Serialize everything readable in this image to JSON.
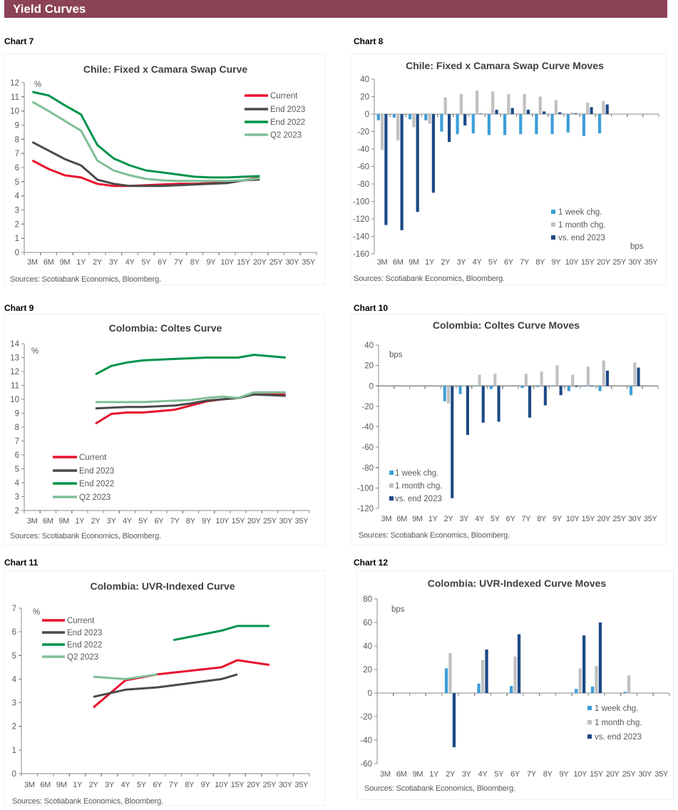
{
  "header": {
    "title": "Yield Curves"
  },
  "chart_data": [
    {
      "label": "Chart 7",
      "type": "line",
      "title": "Chile: Fixed x Camara Swap Curve",
      "unit": "%",
      "xlabel": "",
      "ylabel": "%",
      "categories": [
        "3M",
        "6M",
        "9M",
        "1Y",
        "2Y",
        "3Y",
        "4Y",
        "5Y",
        "6Y",
        "7Y",
        "8Y",
        "9Y",
        "10Y",
        "15Y",
        "20Y",
        "25Y",
        "30Y",
        "35Y"
      ],
      "ylim": [
        0,
        12
      ],
      "yticks": [
        0,
        1,
        2,
        3,
        4,
        5,
        6,
        7,
        8,
        9,
        10,
        11,
        12
      ],
      "grid": false,
      "legend_position": "top-right",
      "series": [
        {
          "name": "Current",
          "color": "#E8112D",
          "values": [
            6.5,
            5.9,
            5.45,
            5.3,
            4.85,
            4.7,
            4.7,
            4.75,
            4.8,
            4.85,
            4.85,
            4.9,
            4.95,
            5.1,
            5.3,
            null,
            null,
            null
          ]
        },
        {
          "name": "End 2023",
          "color": "#4A4A4A",
          "values": [
            7.8,
            7.2,
            6.6,
            6.15,
            5.15,
            4.85,
            4.7,
            4.7,
            4.7,
            4.75,
            4.8,
            4.85,
            4.9,
            5.1,
            5.15,
            null,
            null,
            null
          ]
        },
        {
          "name": "End 2022",
          "color": "#00934A",
          "values": [
            11.35,
            11.1,
            10.4,
            9.75,
            7.6,
            6.65,
            6.15,
            5.8,
            5.65,
            5.5,
            5.35,
            5.3,
            5.3,
            5.35,
            5.4,
            null,
            null,
            null
          ]
        },
        {
          "name": "Q2 2023",
          "color": "#7FBF97",
          "values": [
            10.65,
            10.0,
            9.3,
            8.6,
            6.5,
            5.8,
            5.45,
            5.2,
            5.1,
            5.05,
            5.05,
            5.05,
            5.05,
            5.1,
            5.25,
            null,
            null,
            null
          ]
        }
      ],
      "source": "Sources: Scotiabank Economics, Bloomberg."
    },
    {
      "label": "Chart 8",
      "type": "bar",
      "title": "Chile: Fixed x Camara Swap Curve Moves",
      "unit": "bps",
      "xlabel": "",
      "ylabel": "bps",
      "categories": [
        "3M",
        "6M",
        "9M",
        "1Y",
        "2Y",
        "3Y",
        "4Y",
        "5Y",
        "6Y",
        "7Y",
        "8Y",
        "9Y",
        "10Y",
        "15Y",
        "20Y",
        "25Y",
        "30Y",
        "35Y"
      ],
      "ylim": [
        -160,
        40
      ],
      "yticks": [
        -160,
        -140,
        -120,
        -100,
        -80,
        -60,
        -40,
        -20,
        0,
        20,
        40
      ],
      "grid": false,
      "legend_position": "bottom-right",
      "series": [
        {
          "name": "1 week chg.",
          "color": "#3D9ED8",
          "values": [
            -7,
            -4,
            -6,
            -7,
            -20,
            -23,
            -22,
            -24,
            -24,
            -23,
            -23,
            -23,
            -21,
            -25,
            -22,
            null,
            null,
            null
          ]
        },
        {
          "name": "1 month chg.",
          "color": "#C0C0C0",
          "values": [
            -41,
            -30,
            -15,
            -11,
            19,
            23,
            27,
            26,
            23,
            23,
            20,
            16,
            2,
            13,
            15,
            null,
            null,
            null
          ]
        },
        {
          "name": "vs. end 2023",
          "color": "#1D4A87",
          "values": [
            -127,
            -133,
            -112,
            -90,
            -32,
            -13,
            0.5,
            5,
            7,
            5,
            3,
            2,
            1,
            8,
            11,
            null,
            null,
            null
          ]
        }
      ],
      "source": "Sources: Scotiabank Economics, Bloomberg."
    },
    {
      "label": "Chart 9",
      "type": "line",
      "title": "Colombia: Coltes Curve",
      "unit": "%",
      "xlabel": "",
      "ylabel": "%",
      "categories": [
        "3M",
        "6M",
        "9M",
        "1Y",
        "2Y",
        "3Y",
        "4Y",
        "5Y",
        "6Y",
        "7Y",
        "8Y",
        "9Y",
        "10Y",
        "15Y",
        "20Y",
        "25Y",
        "30Y",
        "35Y"
      ],
      "ylim": [
        2,
        14
      ],
      "yticks": [
        2,
        3,
        4,
        5,
        6,
        7,
        8,
        9,
        10,
        11,
        12,
        13,
        14
      ],
      "grid": false,
      "legend_position": "bottom-left",
      "series": [
        {
          "name": "Current",
          "color": "#E8112D",
          "values": [
            null,
            null,
            null,
            null,
            8.25,
            8.95,
            9.05,
            9.05,
            9.15,
            9.25,
            9.55,
            9.85,
            10.0,
            10.1,
            10.35,
            null,
            10.35,
            null
          ]
        },
        {
          "name": "End 2023",
          "color": "#4A4A4A",
          "values": [
            null,
            null,
            null,
            null,
            9.35,
            9.4,
            9.45,
            9.45,
            9.5,
            9.55,
            9.7,
            9.9,
            10.0,
            10.1,
            10.35,
            null,
            10.25,
            null
          ]
        },
        {
          "name": "End 2022",
          "color": "#00934A",
          "values": [
            null,
            null,
            null,
            null,
            11.8,
            12.4,
            12.65,
            12.8,
            12.85,
            12.9,
            12.95,
            13.0,
            13.0,
            13.0,
            13.2,
            null,
            13.0,
            null
          ]
        },
        {
          "name": "Q2 2023",
          "color": "#7FBF97",
          "values": [
            null,
            null,
            null,
            null,
            9.8,
            9.8,
            9.8,
            9.8,
            9.85,
            9.9,
            9.95,
            10.1,
            10.2,
            10.1,
            10.5,
            null,
            10.5,
            null
          ]
        }
      ],
      "source": "Sources: Scotiabank Economics, Bloomberg."
    },
    {
      "label": "Chart 10",
      "type": "bar",
      "title": "Colombia: Coltes Curve Moves",
      "unit": "bps",
      "xlabel": "",
      "ylabel": "bps",
      "categories": [
        "3M",
        "6M",
        "9M",
        "1Y",
        "2Y",
        "3Y",
        "4Y",
        "5Y",
        "6Y",
        "7Y",
        "8Y",
        "9Y",
        "10Y",
        "15Y",
        "20Y",
        "25Y",
        "30Y",
        "35Y"
      ],
      "ylim": [
        -120,
        40
      ],
      "yticks": [
        -120,
        -100,
        -80,
        -60,
        -40,
        -20,
        0,
        20,
        40
      ],
      "grid": false,
      "legend_position": "bottom-left",
      "series": [
        {
          "name": "1 week chg.",
          "color": "#3D9ED8",
          "values": [
            null,
            null,
            null,
            null,
            -15,
            -8,
            0.5,
            -3,
            null,
            -2,
            -1,
            0.5,
            -5,
            -0.5,
            -5,
            null,
            -9,
            null
          ]
        },
        {
          "name": "1 month chg.",
          "color": "#C0C0C0",
          "values": [
            null,
            null,
            null,
            null,
            -17,
            0,
            11,
            12,
            null,
            12,
            14,
            20,
            11,
            19,
            25,
            null,
            23,
            null
          ]
        },
        {
          "name": "vs. end 2023",
          "color": "#1D4A87",
          "values": [
            null,
            null,
            null,
            null,
            -110,
            -48,
            -36,
            -35,
            null,
            -31,
            -19,
            -9,
            -1,
            -0.5,
            15,
            null,
            18,
            null
          ]
        }
      ],
      "source": "Sources: Scotiabank Economics, Bloomberg."
    },
    {
      "label": "Chart 11",
      "type": "line",
      "title": "Colombia: UVR-Indexed Curve",
      "unit": "%",
      "xlabel": "",
      "ylabel": "%",
      "categories": [
        "3M",
        "6M",
        "9M",
        "1Y",
        "2Y",
        "3Y",
        "4Y",
        "5Y",
        "6Y",
        "7Y",
        "8Y",
        "9Y",
        "10Y",
        "15Y",
        "20Y",
        "25Y",
        "30Y",
        "35Y"
      ],
      "ylim": [
        0,
        7
      ],
      "yticks": [
        0,
        1,
        2,
        3,
        4,
        5,
        6,
        7
      ],
      "grid": false,
      "legend_position": "top-left",
      "series": [
        {
          "name": "Current",
          "color": "#E8112D",
          "values": [
            null,
            null,
            null,
            null,
            2.8,
            null,
            3.95,
            null,
            4.2,
            null,
            null,
            null,
            4.5,
            4.8,
            null,
            4.6,
            null,
            null
          ]
        },
        {
          "name": "End 2023",
          "color": "#4A4A4A",
          "values": [
            null,
            null,
            null,
            null,
            3.25,
            null,
            3.55,
            null,
            3.65,
            null,
            null,
            null,
            4.0,
            4.2,
            null,
            null,
            null,
            null
          ]
        },
        {
          "name": "End 2022",
          "color": "#00934A",
          "values": [
            null,
            null,
            null,
            null,
            null,
            null,
            null,
            null,
            null,
            5.65,
            null,
            null,
            6.05,
            6.25,
            null,
            6.25,
            null,
            null
          ]
        },
        {
          "name": "Q2 2023",
          "color": "#7FBF97",
          "values": [
            null,
            null,
            null,
            null,
            4.1,
            null,
            4.0,
            null,
            4.2,
            null,
            null,
            null,
            null,
            null,
            null,
            null,
            null,
            null
          ]
        }
      ],
      "source": "Sources: Scotiabank Economics, Bloomberg."
    },
    {
      "label": "Chart 12",
      "type": "bar",
      "title": "Colombia: UVR-Indexed Curve Moves",
      "unit": "bps",
      "xlabel": "",
      "ylabel": "bps",
      "categories": [
        "3M",
        "6M",
        "9M",
        "1Y",
        "2Y",
        "3Y",
        "4Y",
        "5Y",
        "6Y",
        "7Y",
        "8Y",
        "9Y",
        "10Y",
        "15Y",
        "20Y",
        "25Y",
        "30Y",
        "35Y"
      ],
      "ylim": [
        -60,
        80
      ],
      "yticks": [
        -60,
        -40,
        -20,
        0,
        20,
        40,
        60,
        80
      ],
      "grid": false,
      "legend_position": "right",
      "series": [
        {
          "name": "1 week chg.",
          "color": "#3D9ED8",
          "values": [
            null,
            null,
            null,
            null,
            21,
            null,
            8,
            null,
            6,
            null,
            null,
            null,
            3.5,
            5.5,
            null,
            1,
            null,
            null
          ]
        },
        {
          "name": "1 month chg.",
          "color": "#C0C0C0",
          "values": [
            null,
            null,
            null,
            null,
            34,
            null,
            28,
            null,
            31,
            null,
            null,
            null,
            21,
            23,
            null,
            15,
            null,
            null
          ]
        },
        {
          "name": "vs. end 2023",
          "color": "#1D4A87",
          "values": [
            null,
            null,
            null,
            null,
            -46,
            null,
            37,
            null,
            50,
            null,
            null,
            null,
            49,
            60,
            null,
            null,
            null,
            null
          ]
        }
      ],
      "source": "Sources: Scotiabank Economics, Bloomberg."
    }
  ]
}
